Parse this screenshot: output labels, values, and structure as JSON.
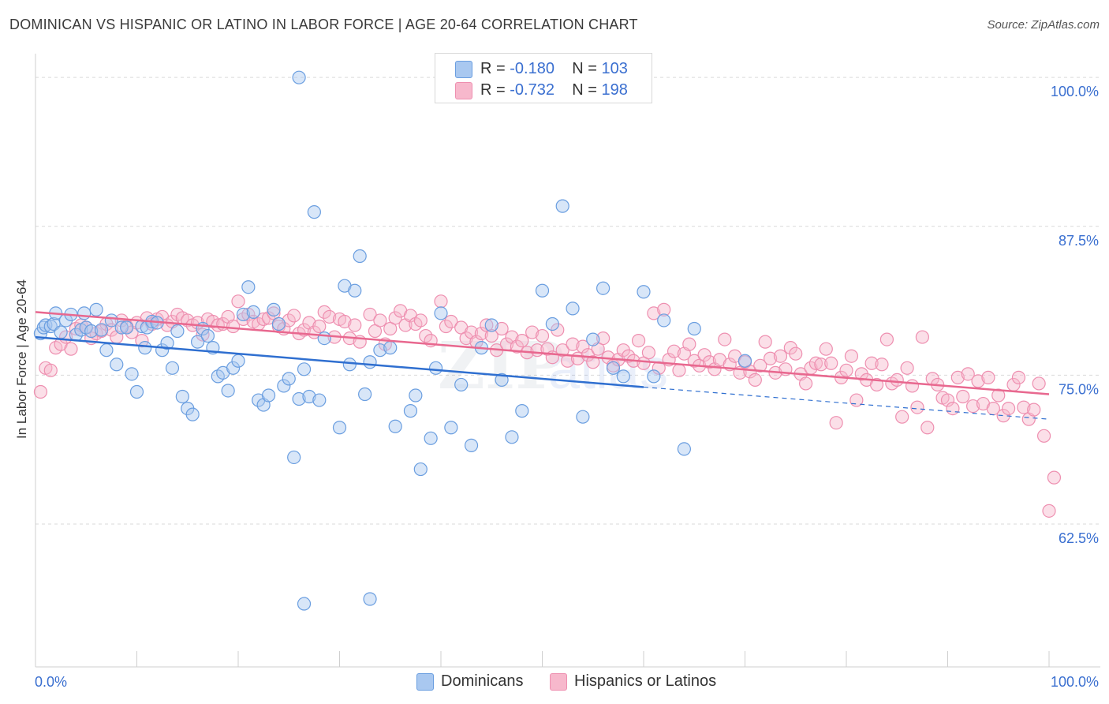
{
  "title": "DOMINICAN VS HISPANIC OR LATINO IN LABOR FORCE | AGE 20-64 CORRELATION CHART",
  "source": "Source: ZipAtlas.com",
  "legend": {
    "rows": [
      {
        "r_label": "R = ",
        "r_value": "-0.180",
        "n_label": "N = ",
        "n_value": "103"
      },
      {
        "r_label": "R = ",
        "r_value": "-0.732",
        "n_label": "N = ",
        "n_value": "198"
      }
    ]
  },
  "bottom_legend": [
    "Dominicans",
    "Hispanics or Latinos"
  ],
  "colors": {
    "blue_fill": "#a9c8f0",
    "blue_stroke": "#6a9ee0",
    "blue_line": "#2f6fd0",
    "pink_fill": "#f7b8cc",
    "pink_stroke": "#ee8fb0",
    "pink_line": "#e8688f",
    "tick_label": "#3a6fd0",
    "grid": "#d9d9d9"
  },
  "chart_data": {
    "type": "scatter",
    "title": "DOMINICAN VS HISPANIC OR LATINO IN LABOR FORCE | AGE 20-64 CORRELATION CHART",
    "xlabel": "",
    "ylabel": "In Labor Force | Age 20-64",
    "xlim": [
      0,
      100
    ],
    "ylim": [
      50.5,
      102
    ],
    "x_tick_labels": [
      "0.0%",
      "100.0%"
    ],
    "y_ticks": [
      62.5,
      75.0,
      87.5,
      100.0
    ],
    "y_tick_labels": [
      "62.5%",
      "75.0%",
      "87.5%",
      "100.0%"
    ],
    "grid": true,
    "legend_position": "top-center",
    "series": [
      {
        "name": "Dominicans",
        "R": -0.18,
        "N": 103,
        "trend": {
          "x0": 0,
          "y0": 78.2,
          "x1": 60,
          "y1": 74.0,
          "dashed_to_x": 100,
          "dashed_to_y": 71.3
        },
        "points": [
          [
            0.5,
            78.5
          ],
          [
            0.8,
            79
          ],
          [
            1,
            79.2
          ],
          [
            1.5,
            79.1
          ],
          [
            1.8,
            79.3
          ],
          [
            2,
            80.2
          ],
          [
            2.5,
            78.6
          ],
          [
            3,
            79.6
          ],
          [
            3.5,
            80.1
          ],
          [
            4,
            78.4
          ],
          [
            4.5,
            78.8
          ],
          [
            4.8,
            80.2
          ],
          [
            5,
            79
          ],
          [
            5.5,
            78.7
          ],
          [
            6,
            80.5
          ],
          [
            6.5,
            78.8
          ],
          [
            7,
            77.1
          ],
          [
            7.5,
            79.6
          ],
          [
            8,
            75.9
          ],
          [
            8.5,
            79
          ],
          [
            9,
            79
          ],
          [
            9.5,
            75.1
          ],
          [
            10,
            73.6
          ],
          [
            10.5,
            79.1
          ],
          [
            10.8,
            77.3
          ],
          [
            11,
            79
          ],
          [
            11.5,
            79.5
          ],
          [
            12,
            79.4
          ],
          [
            12.5,
            77.1
          ],
          [
            13,
            77.7
          ],
          [
            13.5,
            75.6
          ],
          [
            14,
            78.7
          ],
          [
            14.5,
            73.2
          ],
          [
            15,
            72.2
          ],
          [
            15.5,
            71.7
          ],
          [
            16,
            77.8
          ],
          [
            16.5,
            78.9
          ],
          [
            17,
            78.3
          ],
          [
            17.5,
            77.3
          ],
          [
            18,
            74.9
          ],
          [
            18.5,
            75.2
          ],
          [
            19,
            73.7
          ],
          [
            19.5,
            75.6
          ],
          [
            20,
            76.2
          ],
          [
            20.5,
            80.1
          ],
          [
            21,
            82.4
          ],
          [
            21.5,
            80.3
          ],
          [
            22,
            72.9
          ],
          [
            22.5,
            72.5
          ],
          [
            23,
            73.3
          ],
          [
            23.5,
            80.5
          ],
          [
            24,
            79.3
          ],
          [
            24.5,
            74.1
          ],
          [
            25,
            74.7
          ],
          [
            25.5,
            68.1
          ],
          [
            26,
            73
          ],
          [
            26.5,
            75.5
          ],
          [
            27,
            73.2
          ],
          [
            27.5,
            88.7
          ],
          [
            28,
            72.9
          ],
          [
            28.5,
            78.1
          ],
          [
            30,
            70.6
          ],
          [
            30.5,
            82.5
          ],
          [
            31,
            75.9
          ],
          [
            31.5,
            82.1
          ],
          [
            32,
            85
          ],
          [
            32.5,
            73.4
          ],
          [
            33,
            76.1
          ],
          [
            34,
            77.1
          ],
          [
            35,
            77.3
          ],
          [
            35.5,
            70.7
          ],
          [
            37,
            72
          ],
          [
            37.5,
            73.3
          ],
          [
            38,
            67.1
          ],
          [
            39,
            69.7
          ],
          [
            39.5,
            75.6
          ],
          [
            40,
            80.2
          ],
          [
            41,
            70.6
          ],
          [
            42,
            74.2
          ],
          [
            43,
            69.1
          ],
          [
            44,
            77.3
          ],
          [
            45,
            79.2
          ],
          [
            46,
            74.6
          ],
          [
            47,
            69.8
          ],
          [
            48,
            72
          ],
          [
            50,
            82.1
          ],
          [
            51,
            79.3
          ],
          [
            52,
            89.2
          ],
          [
            53,
            80.6
          ],
          [
            54,
            71.5
          ],
          [
            55,
            78
          ],
          [
            56,
            82.3
          ],
          [
            57,
            75.6
          ],
          [
            58,
            74.9
          ],
          [
            60,
            82
          ],
          [
            61,
            74.9
          ],
          [
            62,
            79.6
          ],
          [
            64,
            68.8
          ],
          [
            65,
            78.9
          ],
          [
            70,
            76.2
          ],
          [
            26,
            100
          ],
          [
            26.5,
            55.8
          ],
          [
            33,
            56.2
          ]
        ]
      },
      {
        "name": "Hispanics or Latinos",
        "R": -0.732,
        "N": 198,
        "trend": {
          "x0": 0,
          "y0": 80.3,
          "x1": 100,
          "y1": 73.4
        },
        "points": [
          [
            0.5,
            73.6
          ],
          [
            1,
            75.6
          ],
          [
            1.5,
            75.4
          ],
          [
            2,
            77.3
          ],
          [
            2.5,
            77.6
          ],
          [
            3,
            78.2
          ],
          [
            3.5,
            77.2
          ],
          [
            4,
            78.9
          ],
          [
            4.5,
            79.2
          ],
          [
            5,
            79
          ],
          [
            5.5,
            78.1
          ],
          [
            6,
            78.5
          ],
          [
            6.5,
            78.7
          ],
          [
            7,
            79.3
          ],
          [
            7.5,
            78.8
          ],
          [
            8,
            78.2
          ],
          [
            8.5,
            79.6
          ],
          [
            9,
            79.1
          ],
          [
            9.5,
            78.6
          ],
          [
            10,
            79.4
          ],
          [
            10.5,
            77.9
          ],
          [
            11,
            79.8
          ],
          [
            11.5,
            79.3
          ],
          [
            12,
            79.7
          ],
          [
            12.5,
            79.9
          ],
          [
            13,
            79.2
          ],
          [
            13.5,
            79.5
          ],
          [
            14,
            80.1
          ],
          [
            14.5,
            79.8
          ],
          [
            15,
            79.6
          ],
          [
            15.5,
            79.2
          ],
          [
            16,
            79.4
          ],
          [
            16.5,
            78.4
          ],
          [
            17,
            79.7
          ],
          [
            17.5,
            79.5
          ],
          [
            18,
            79.2
          ],
          [
            18.5,
            79.3
          ],
          [
            19,
            79.9
          ],
          [
            19.5,
            79.1
          ],
          [
            20,
            81.2
          ],
          [
            20.5,
            79.7
          ],
          [
            21,
            80.1
          ],
          [
            21.5,
            79.5
          ],
          [
            22,
            79.3
          ],
          [
            22.5,
            79.7
          ],
          [
            23,
            79.8
          ],
          [
            23.5,
            80.2
          ],
          [
            24,
            79.1
          ],
          [
            24.5,
            78.9
          ],
          [
            25,
            79.6
          ],
          [
            25.5,
            80
          ],
          [
            26,
            78.5
          ],
          [
            26.5,
            78.8
          ],
          [
            27,
            79.4
          ],
          [
            27.5,
            78.6
          ],
          [
            28,
            79.1
          ],
          [
            28.5,
            80.3
          ],
          [
            29,
            79.9
          ],
          [
            29.5,
            78.2
          ],
          [
            30,
            79.7
          ],
          [
            30.5,
            79.5
          ],
          [
            31,
            78.1
          ],
          [
            31.5,
            79.2
          ],
          [
            32,
            77.8
          ],
          [
            33,
            80.1
          ],
          [
            33.5,
            78.7
          ],
          [
            34,
            79.6
          ],
          [
            34.5,
            77.6
          ],
          [
            35,
            78.9
          ],
          [
            35.5,
            79.8
          ],
          [
            36,
            80.4
          ],
          [
            36.5,
            79.2
          ],
          [
            37,
            80
          ],
          [
            37.5,
            79.3
          ],
          [
            38,
            79.6
          ],
          [
            38.5,
            78.3
          ],
          [
            39,
            77.9
          ],
          [
            40,
            81.2
          ],
          [
            40.5,
            79.1
          ],
          [
            41,
            79.5
          ],
          [
            42,
            79
          ],
          [
            42.5,
            78.1
          ],
          [
            43,
            78.6
          ],
          [
            43.5,
            77.8
          ],
          [
            44,
            78.5
          ],
          [
            44.5,
            79.2
          ],
          [
            45,
            78.3
          ],
          [
            45.5,
            77.1
          ],
          [
            46,
            78.9
          ],
          [
            46.5,
            77.6
          ],
          [
            47,
            78.2
          ],
          [
            47.5,
            77.4
          ],
          [
            48,
            77.9
          ],
          [
            48.5,
            76.9
          ],
          [
            49,
            78.6
          ],
          [
            49.5,
            77.1
          ],
          [
            50,
            78.3
          ],
          [
            50.5,
            77.2
          ],
          [
            51,
            76.5
          ],
          [
            51.5,
            78.8
          ],
          [
            52,
            77.1
          ],
          [
            52.5,
            76.2
          ],
          [
            53,
            77.6
          ],
          [
            53.5,
            76.4
          ],
          [
            54,
            77.4
          ],
          [
            54.5,
            76.7
          ],
          [
            55,
            76.1
          ],
          [
            55.5,
            77.2
          ],
          [
            56,
            78.1
          ],
          [
            56.5,
            76.5
          ],
          [
            57,
            75.8
          ],
          [
            57.5,
            76.3
          ],
          [
            58,
            77.1
          ],
          [
            58.5,
            76.6
          ],
          [
            59,
            76.2
          ],
          [
            59.5,
            77.9
          ],
          [
            60,
            76
          ],
          [
            60.5,
            76.9
          ],
          [
            61,
            80.2
          ],
          [
            61.5,
            75.6
          ],
          [
            62,
            80.5
          ],
          [
            62.5,
            76.3
          ],
          [
            63,
            77
          ],
          [
            63.5,
            75.4
          ],
          [
            64,
            76.8
          ],
          [
            64.5,
            77.6
          ],
          [
            65,
            76.2
          ],
          [
            65.5,
            75.8
          ],
          [
            66,
            76.7
          ],
          [
            66.5,
            76.1
          ],
          [
            67,
            75.5
          ],
          [
            67.5,
            76.3
          ],
          [
            68,
            78
          ],
          [
            68.5,
            75.9
          ],
          [
            69,
            76.6
          ],
          [
            69.5,
            75.2
          ],
          [
            70,
            76.1
          ],
          [
            70.5,
            75.3
          ],
          [
            71,
            74.6
          ],
          [
            71.5,
            75.8
          ],
          [
            72,
            77.8
          ],
          [
            72.5,
            76.4
          ],
          [
            73,
            75.2
          ],
          [
            73.5,
            76.6
          ],
          [
            74,
            75.5
          ],
          [
            74.5,
            77.3
          ],
          [
            75,
            76.8
          ],
          [
            75.5,
            75.1
          ],
          [
            76,
            74.3
          ],
          [
            76.5,
            75.6
          ],
          [
            77,
            76
          ],
          [
            77.5,
            75.9
          ],
          [
            78,
            77.2
          ],
          [
            78.5,
            76
          ],
          [
            79,
            71
          ],
          [
            79.5,
            74.8
          ],
          [
            80,
            75.4
          ],
          [
            80.5,
            76.6
          ],
          [
            81,
            72.9
          ],
          [
            81.5,
            75.1
          ],
          [
            82,
            74.6
          ],
          [
            82.5,
            76
          ],
          [
            83,
            74.2
          ],
          [
            83.5,
            75.9
          ],
          [
            84,
            78
          ],
          [
            84.5,
            74.3
          ],
          [
            85,
            74.6
          ],
          [
            85.5,
            71.5
          ],
          [
            86,
            75.6
          ],
          [
            86.5,
            74.1
          ],
          [
            87,
            72.3
          ],
          [
            87.5,
            78.2
          ],
          [
            88,
            70.6
          ],
          [
            88.5,
            74.7
          ],
          [
            89,
            74.2
          ],
          [
            89.5,
            73.1
          ],
          [
            90,
            72.9
          ],
          [
            90.5,
            72.2
          ],
          [
            91,
            74.8
          ],
          [
            91.5,
            73.2
          ],
          [
            92,
            75.1
          ],
          [
            92.5,
            72.4
          ],
          [
            93,
            74.5
          ],
          [
            93.5,
            72.6
          ],
          [
            94,
            74.8
          ],
          [
            94.5,
            72.2
          ],
          [
            95,
            73.3
          ],
          [
            95.5,
            71.6
          ],
          [
            96,
            72.2
          ],
          [
            96.5,
            74.2
          ],
          [
            97,
            74.8
          ],
          [
            97.5,
            72.3
          ],
          [
            98,
            71.3
          ],
          [
            98.5,
            72.1
          ],
          [
            99,
            74.3
          ],
          [
            99.5,
            69.9
          ],
          [
            100,
            63.6
          ],
          [
            100.5,
            66.4
          ]
        ]
      }
    ]
  }
}
